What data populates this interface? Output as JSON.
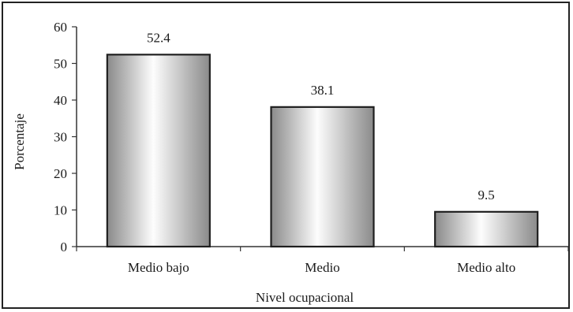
{
  "chart_data": {
    "type": "bar",
    "title": "",
    "xlabel": "Nivel ocupacional",
    "ylabel": "Porcentaje",
    "categories": [
      "Medio bajo",
      "Medio",
      "Medio alto"
    ],
    "values": [
      52.4,
      38.1,
      9.5
    ],
    "data_labels": [
      "52.4",
      "38.1",
      "9.5"
    ],
    "ylim": [
      0,
      60
    ],
    "yticks": [
      0,
      10,
      20,
      30,
      40,
      50,
      60
    ],
    "grid": false,
    "legend": "none",
    "colors": {
      "bar_edge": "#1f1f1f",
      "bar_light": "#fdfdfd",
      "bar_dark": "#8a8a8a",
      "axis": "#333333"
    }
  }
}
